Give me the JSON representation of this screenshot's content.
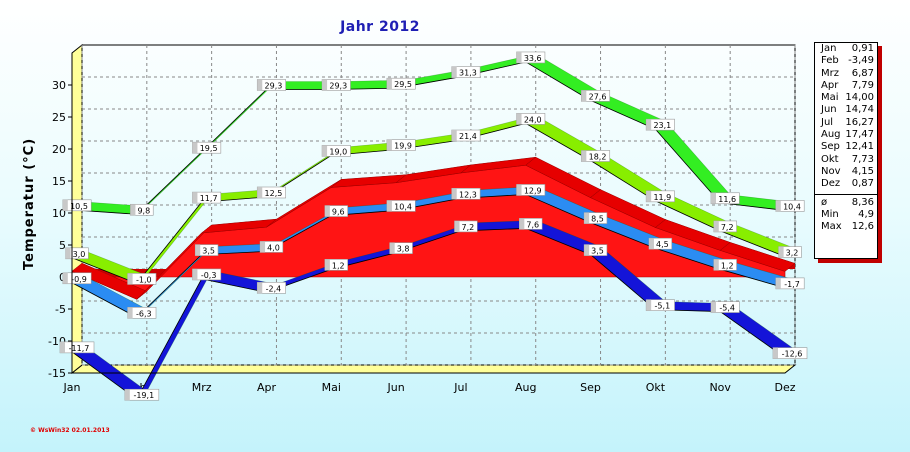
{
  "chart_data": {
    "type": "area",
    "title": "Jahr  2012",
    "ylabel": "Temperatur  (°C)",
    "ylim": [
      -15,
      35
    ],
    "yticks": [
      -15,
      -10,
      -5,
      0,
      5,
      10,
      15,
      20,
      25,
      30
    ],
    "grid": true,
    "categories": [
      "Jan",
      "Feb",
      "Mrz",
      "Apr",
      "Mai",
      "Jun",
      "Jul",
      "Aug",
      "Sep",
      "Okt",
      "Nov",
      "Dez"
    ],
    "series": [
      {
        "name": "",
        "color": "#33ee22",
        "values": [
          10.5,
          9.8,
          19.5,
          29.3,
          29.3,
          29.5,
          31.3,
          33.6,
          27.6,
          23.1,
          11.6,
          10.4
        ],
        "labels": [
          "10,5",
          "9,8",
          "19,5",
          "29,3",
          "29,3",
          "29,5",
          "31,3",
          "33,6",
          "27,6",
          "23,1",
          "11,6",
          "10,4"
        ]
      },
      {
        "name": "",
        "color": "#88ee00",
        "values": [
          3.0,
          -1.0,
          11.7,
          12.5,
          19.0,
          19.9,
          21.4,
          24.0,
          18.2,
          11.9,
          7.2,
          3.2
        ],
        "labels": [
          "3,0",
          "-1,0",
          "11,7",
          "12,5",
          "19,0",
          "19,9",
          "21,4",
          "24,0",
          "18,2",
          "11,9",
          "7,2",
          "3,2"
        ]
      },
      {
        "name": "",
        "color": "#ff1414",
        "values": [
          0.91,
          -3.49,
          6.87,
          7.79,
          14.0,
          14.74,
          16.27,
          17.47,
          12.41,
          7.73,
          4.15,
          0.87
        ]
      },
      {
        "name": "",
        "color": "#2b8cf2",
        "values": [
          -0.9,
          -6.3,
          3.5,
          4.0,
          9.6,
          10.4,
          12.3,
          12.9,
          8.5,
          4.5,
          1.2,
          -1.7
        ],
        "labels": [
          "-0,9",
          "-6,3",
          "3,5",
          "4,0",
          "9,6",
          "10,4",
          "12,3",
          "12,9",
          "8,5",
          "4,5",
          "1,2",
          "-1,7"
        ]
      },
      {
        "name": "",
        "color": "#1414d8",
        "values": [
          -11.7,
          -19.1,
          -0.3,
          -2.4,
          1.2,
          3.8,
          7.2,
          7.6,
          3.5,
          -5.1,
          -5.4,
          -12.6
        ],
        "labels": [
          "-11,7",
          "-19,1",
          "-0,3",
          "-2,4",
          "1,2",
          "3,8",
          "7,2",
          "7,6",
          "3,5",
          "-5,1",
          "-5,4",
          "-12,6"
        ]
      }
    ]
  },
  "stats_box": {
    "months": [
      {
        "label": "Jan",
        "value": "0,91"
      },
      {
        "label": "Feb",
        "value": "-3,49"
      },
      {
        "label": "Mrz",
        "value": "6,87"
      },
      {
        "label": "Apr",
        "value": "7,79"
      },
      {
        "label": "Mai",
        "value": "14,00"
      },
      {
        "label": "Jun",
        "value": "14,74"
      },
      {
        "label": "Jul",
        "value": "16,27"
      },
      {
        "label": "Aug",
        "value": "17,47"
      },
      {
        "label": "Sep",
        "value": "12,41"
      },
      {
        "label": "Okt",
        "value": "7,73"
      },
      {
        "label": "Nov",
        "value": "4,15"
      },
      {
        "label": "Dez",
        "value": "0,87"
      }
    ],
    "summary": [
      {
        "label": "ø",
        "value": "8,36"
      },
      {
        "label": "Min",
        "value": "4,9"
      },
      {
        "label": "Max",
        "value": "12,6"
      }
    ]
  },
  "footer_stamp": "© WsWin32  02.01.2013"
}
